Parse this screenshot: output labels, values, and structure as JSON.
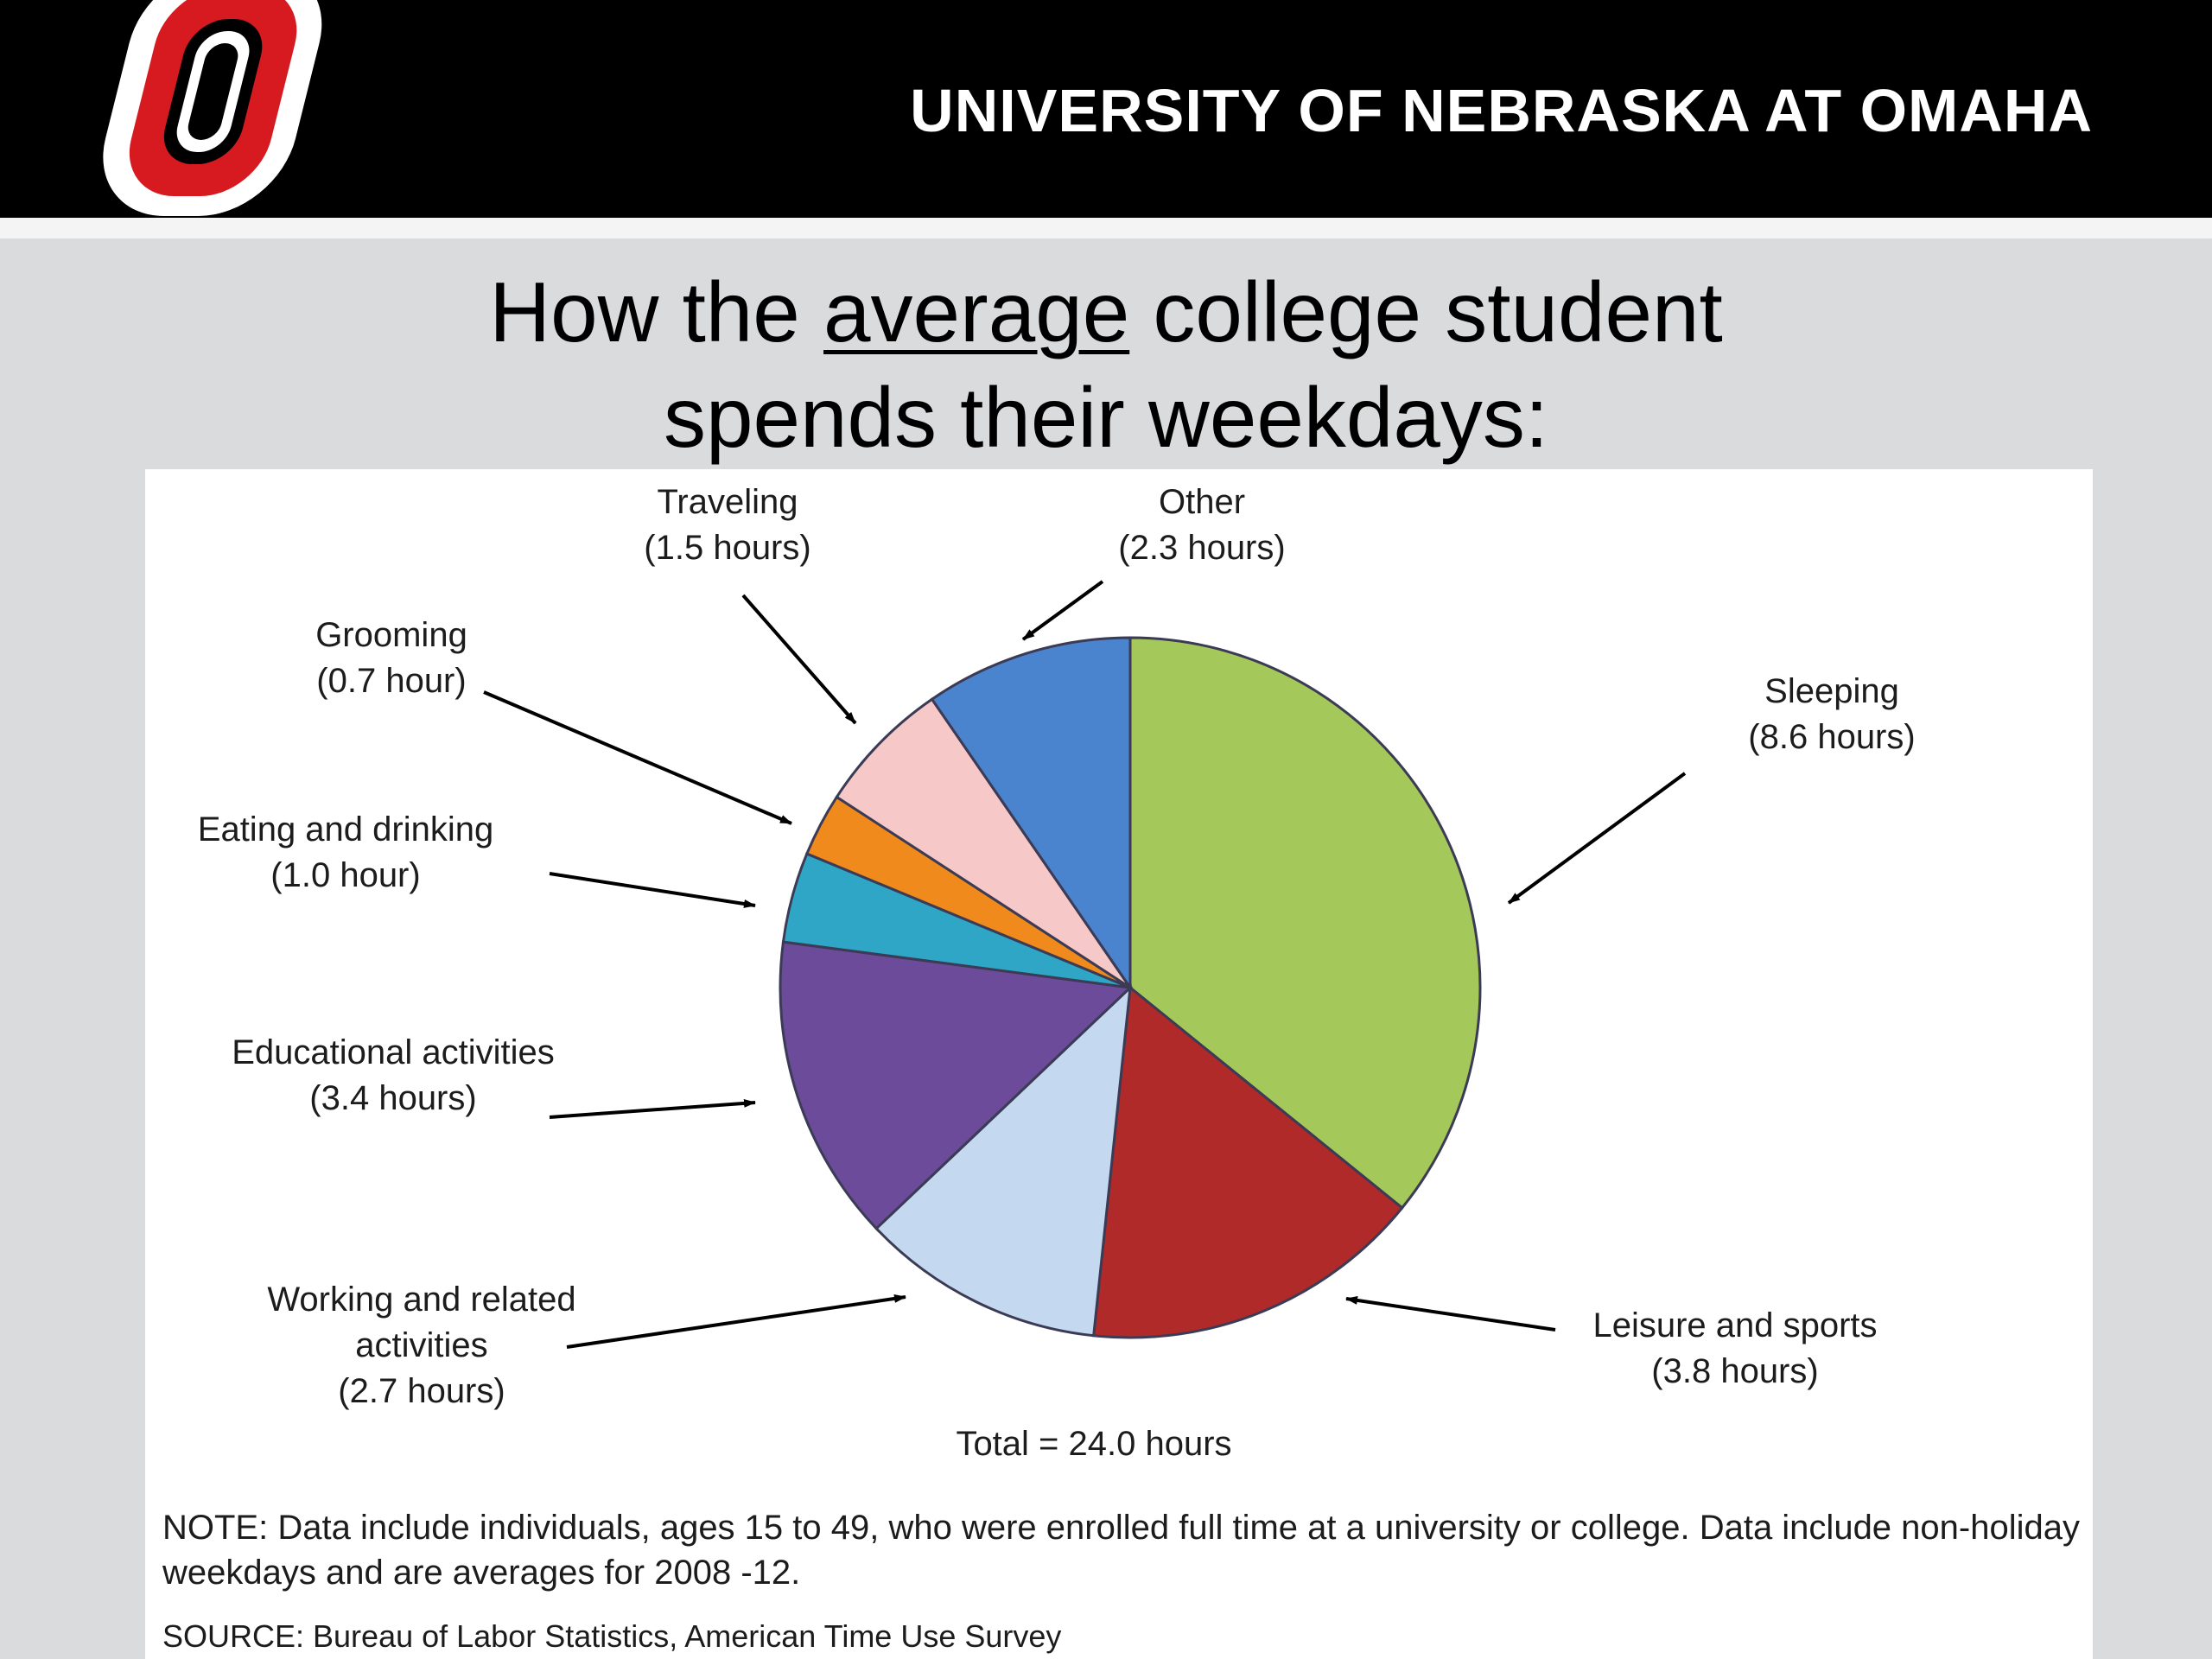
{
  "header": {
    "university_name": "UNIVERSITY OF NEBRASKA AT OMAHA",
    "logo_icon": "unomaha-o-logo-icon",
    "background_color": "#000000",
    "logo_colors": {
      "outer": "#ffffff",
      "ring": "#d71920",
      "core": "#000000"
    }
  },
  "slide": {
    "title_part1": "How the ",
    "title_emphasis": "average",
    "title_part2": " college student",
    "title_line2": "spends their weekdays:"
  },
  "chart_data": {
    "type": "pie",
    "unit": "hours",
    "total_label": "Total = 24.0 hours",
    "slices": [
      {
        "name": "Sleeping",
        "value": 8.6,
        "label": "(8.6 hours)",
        "color": "#a5c85a"
      },
      {
        "name": "Leisure and sports",
        "value": 3.8,
        "label": "(3.8 hours)",
        "color": "#b02a29"
      },
      {
        "name": "Working and related activities",
        "value": 2.7,
        "label": "(2.7 hours)",
        "color": "#c4d8f0"
      },
      {
        "name": "Educational activities",
        "value": 3.4,
        "label": "(3.4 hours)",
        "color": "#6b4b9a"
      },
      {
        "name": "Eating and drinking",
        "value": 1.0,
        "label": "(1.0 hour)",
        "color": "#2fa6c6"
      },
      {
        "name": "Grooming",
        "value": 0.7,
        "label": "(0.7 hour)",
        "color": "#f08a1c"
      },
      {
        "name": "Traveling",
        "value": 1.5,
        "label": "(1.5 hours)",
        "color": "#f6c8c8"
      },
      {
        "name": "Other",
        "value": 2.3,
        "label": "(2.3 hours)",
        "color": "#4a83ce"
      }
    ]
  },
  "notes": {
    "note": "NOTE: Data include individuals, ages 15 to 49, who were enrolled full time at a university or college. Data include non-holiday weekdays and are averages for 2008 -12.",
    "source": "SOURCE: Bureau of Labor Statistics, American Time Use Survey"
  }
}
